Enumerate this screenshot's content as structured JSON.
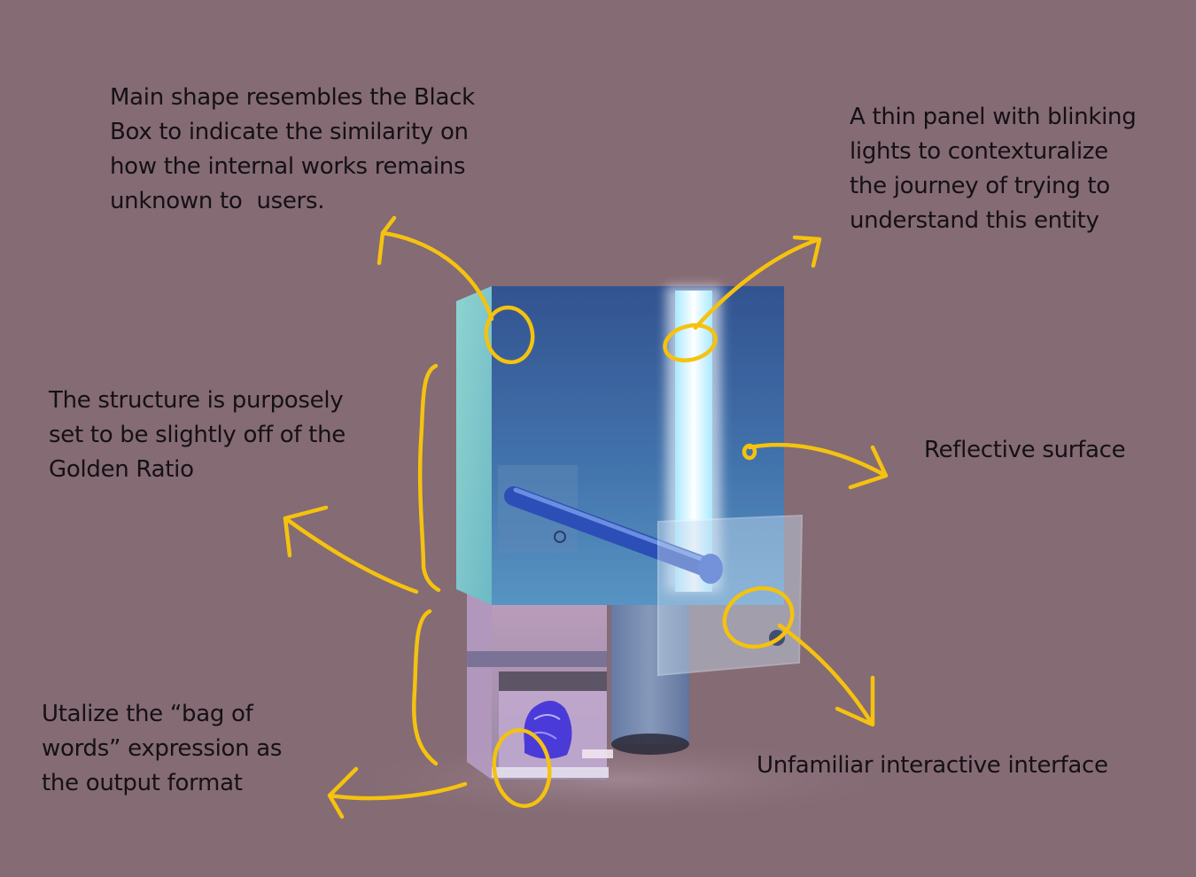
{
  "annotations": {
    "main_shape": {
      "lines": [
        "Main shape resembles the Black",
        "Box to indicate the similarity on",
        "how the internal works remains",
        "unknown to  users."
      ]
    },
    "thin_panel": {
      "lines": [
        "A thin panel with blinking",
        "lights to contexturalize",
        "the journey of trying to",
        "understand this entity"
      ]
    },
    "structure": {
      "lines": [
        "The structure is purposely",
        "set to be slightly off of the",
        "Golden Ratio"
      ]
    },
    "reflective": {
      "lines": [
        "Reflective surface"
      ]
    },
    "interface": {
      "lines": [
        "Unfamiliar interactive interface"
      ]
    },
    "bag_of_words": {
      "lines": [
        "Utalize the “bag of",
        "words” expression as",
        "the output format"
      ]
    }
  },
  "colors": {
    "background": "#846b74",
    "annotation_stroke": "#f5c20f",
    "text": "#151015",
    "box_blue": "#26428f",
    "box_cyan": "#7ac6c9",
    "light_strip": "#e8fbff"
  }
}
